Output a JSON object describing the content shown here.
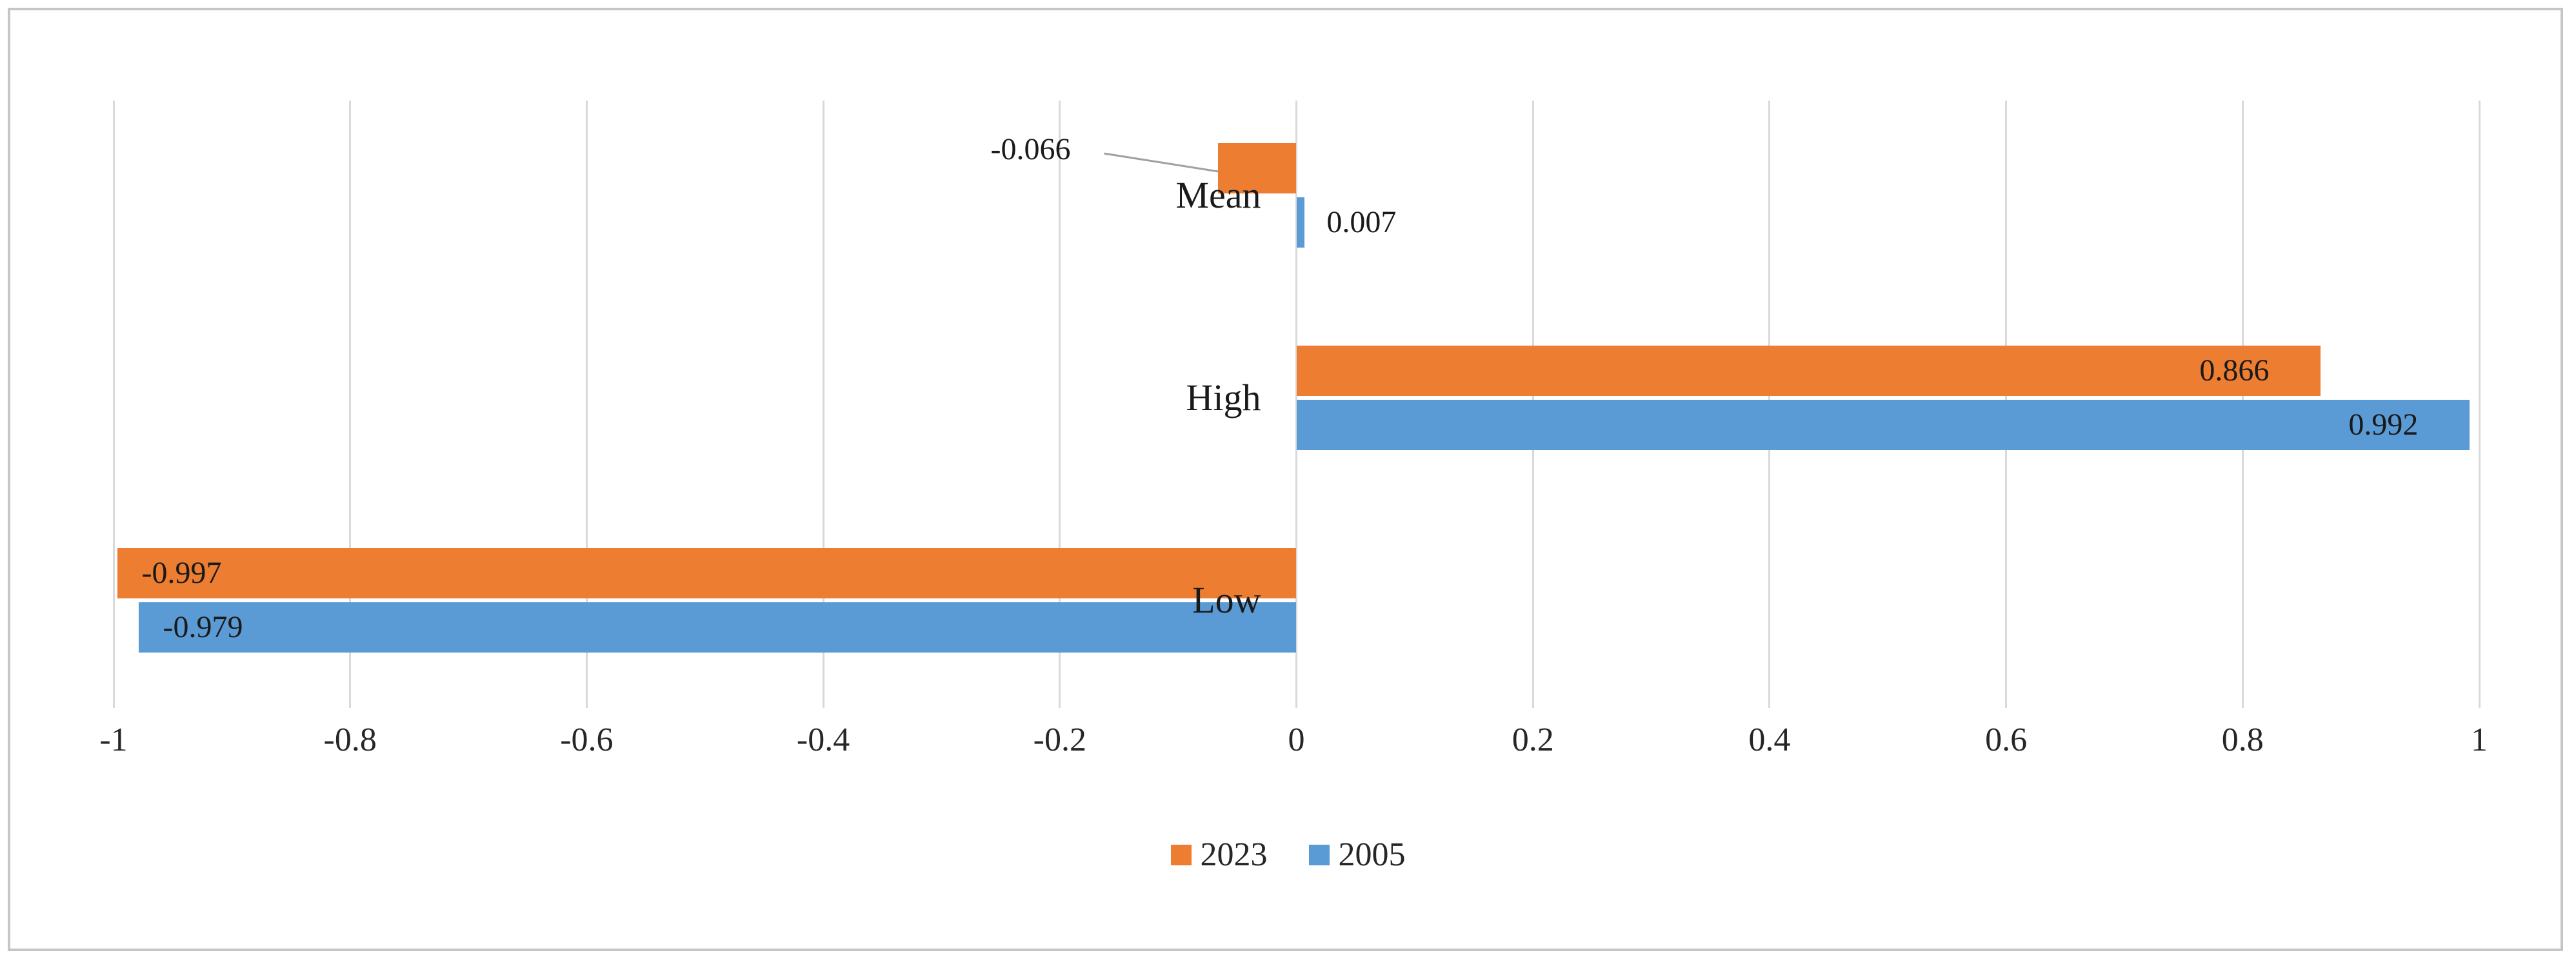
{
  "chart_data": {
    "type": "bar",
    "orientation": "horizontal",
    "title": "",
    "categories": [
      "Mean",
      "High",
      "Low"
    ],
    "series": [
      {
        "name": "2023",
        "color": "#ED7D31",
        "values": [
          -0.066,
          0.866,
          -0.997
        ],
        "data_labels": [
          "-0.066",
          "0.866",
          "-0.997"
        ],
        "label_placement": [
          "callout",
          "inside-end",
          "inside-start"
        ]
      },
      {
        "name": "2005",
        "color": "#5B9BD5",
        "values": [
          0.007,
          0.992,
          -0.979
        ],
        "data_labels": [
          "0.007",
          "0.992",
          "-0.979"
        ],
        "label_placement": [
          "outside-end",
          "inside-end",
          "inside-start"
        ]
      }
    ],
    "x_axis": {
      "min": -1,
      "max": 1,
      "tick_step": 0.2,
      "tick_labels": [
        "-1",
        "-0.8",
        "-0.6",
        "-0.4",
        "-0.2",
        "0",
        "0.2",
        "0.4",
        "0.6",
        "0.8",
        "1"
      ]
    },
    "gridlines": true,
    "gridline_color": "#D9D9D9",
    "frame_border_color": "#C6C6C6",
    "background": "#FFFFFF",
    "text_color": "#1A1A1A",
    "callout_line_color": "#A0A0A0",
    "legend": {
      "position": "bottom",
      "entries": [
        {
          "label": "2023",
          "color": "#ED7D31"
        },
        {
          "label": "2005",
          "color": "#5B9BD5"
        }
      ]
    }
  }
}
